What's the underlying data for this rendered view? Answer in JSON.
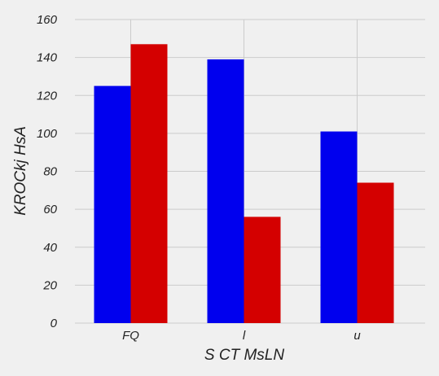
{
  "chart_data": {
    "type": "bar",
    "categories": [
      "FQ",
      "l",
      "u"
    ],
    "series": [
      {
        "values": [
          125,
          139,
          101
        ],
        "color": "#0000ee"
      },
      {
        "values": [
          147,
          56,
          74
        ],
        "color": "#d40000"
      }
    ],
    "xlabel": "S CT  MsLN",
    "ylabel": "KROCkj   HsA",
    "ylim": [
      0,
      160
    ],
    "yticks": [
      0,
      20,
      40,
      60,
      80,
      100,
      120,
      140,
      160
    ],
    "grid": true,
    "background": "#f0f0f0",
    "grid_color": "#cbcbcb"
  }
}
